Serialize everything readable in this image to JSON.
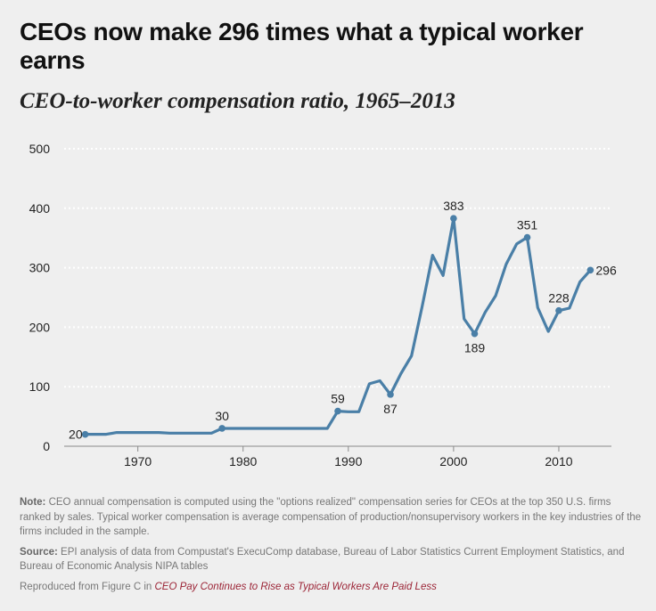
{
  "title": "CEOs now make 296 times what a typical worker earns",
  "subtitle": "CEO-to-worker compensation ratio, 1965–2013",
  "chart_data": {
    "type": "line",
    "xlim": [
      1963,
      2015
    ],
    "ylim": [
      0,
      500
    ],
    "x_ticks": [
      1970,
      1980,
      1990,
      2000,
      2010
    ],
    "y_ticks": [
      0,
      100,
      200,
      300,
      400,
      500
    ],
    "grid": "horizontal dotted",
    "series": [
      {
        "color": "#4a7fa7",
        "x": [
          1965,
          1966,
          1967,
          1968,
          1969,
          1970,
          1971,
          1972,
          1973,
          1974,
          1975,
          1976,
          1977,
          1978,
          1979,
          1980,
          1981,
          1982,
          1983,
          1984,
          1985,
          1986,
          1987,
          1988,
          1989,
          1990,
          1991,
          1992,
          1993,
          1994,
          1995,
          1996,
          1997,
          1998,
          1999,
          2000,
          2001,
          2002,
          2003,
          2004,
          2005,
          2006,
          2007,
          2008,
          2009,
          2010,
          2011,
          2012,
          2013
        ],
        "y": [
          20,
          20,
          20,
          23,
          23,
          23,
          23,
          23,
          22,
          22,
          22,
          22,
          22,
          30,
          30,
          30,
          30,
          30,
          30,
          30,
          30,
          30,
          30,
          30,
          59,
          58,
          58,
          105,
          110,
          87,
          122,
          152,
          234,
          321,
          287,
          383,
          214,
          189,
          225,
          253,
          306,
          340,
          351,
          233,
          193,
          228,
          232,
          276,
          296
        ]
      }
    ],
    "annotations": [
      {
        "x": 1965,
        "y": 20,
        "text": "20",
        "pos": "left"
      },
      {
        "x": 1978,
        "y": 30,
        "text": "30",
        "pos": "above"
      },
      {
        "x": 1989,
        "y": 59,
        "text": "59",
        "pos": "above"
      },
      {
        "x": 1994,
        "y": 87,
        "text": "87",
        "pos": "below"
      },
      {
        "x": 2000,
        "y": 383,
        "text": "383",
        "pos": "above"
      },
      {
        "x": 2002,
        "y": 189,
        "text": "189",
        "pos": "below"
      },
      {
        "x": 2007,
        "y": 351,
        "text": "351",
        "pos": "above"
      },
      {
        "x": 2010,
        "y": 228,
        "text": "228",
        "pos": "above"
      },
      {
        "x": 2013,
        "y": 296,
        "text": "296",
        "pos": "right"
      }
    ]
  },
  "notes": {
    "note_label": "Note:",
    "note_text": " CEO annual compensation is computed using the \"options realized\" compensation series for CEOs at the top 350 U.S. firms ranked by sales. Typical worker compensation is average compensation of production/nonsupervisory workers in the key industries of the firms included in the sample.",
    "source_label": "Source:",
    "source_text": " EPI analysis of data from Compustat's ExecuComp database, Bureau of Labor Statistics Current Employment Statistics, and Bureau of Economic Analysis NIPA tables",
    "repro_text": "Reproduced from Figure C in ",
    "repro_link": "CEO Pay Continues to Rise as Typical Workers Are Paid Less"
  }
}
